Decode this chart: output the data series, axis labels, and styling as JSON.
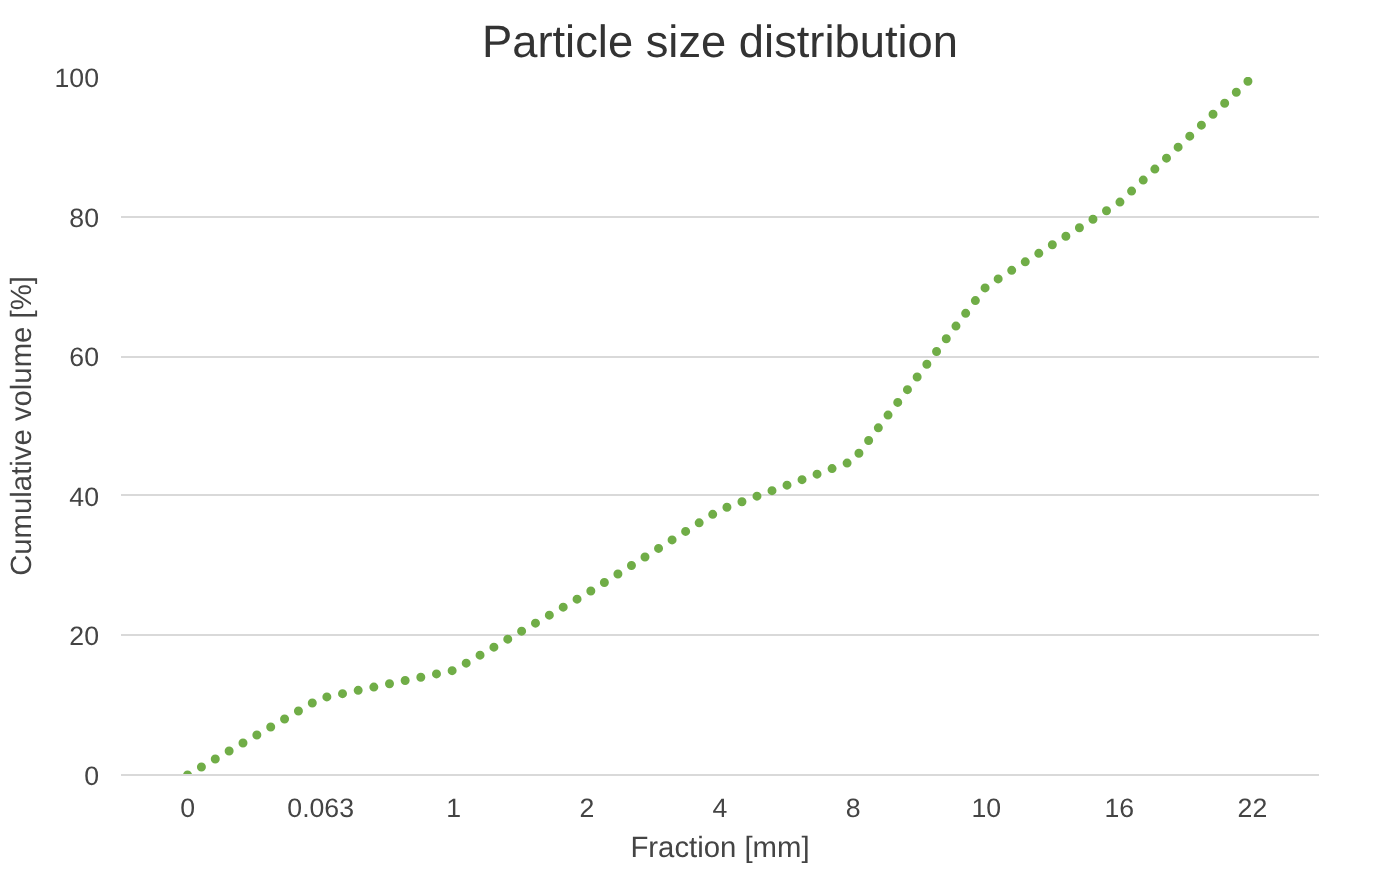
{
  "chart_data": {
    "type": "line",
    "title": "Particle size distribution",
    "xlabel": "Fraction [mm]",
    "ylabel": "Cumulative volume [%]",
    "categories": [
      "0",
      "0.063",
      "1",
      "2",
      "4",
      "8",
      "10",
      "16",
      "22"
    ],
    "series": [
      {
        "color": "#70ad47",
        "values": [
          0,
          11,
          15,
          26,
          38,
          45,
          70,
          82,
          100
        ]
      }
    ],
    "ylim": [
      0,
      100
    ],
    "yticks": [
      0,
      20,
      40,
      60,
      80,
      100
    ],
    "grid": "y",
    "line_style": "dotted",
    "marker": "none"
  }
}
